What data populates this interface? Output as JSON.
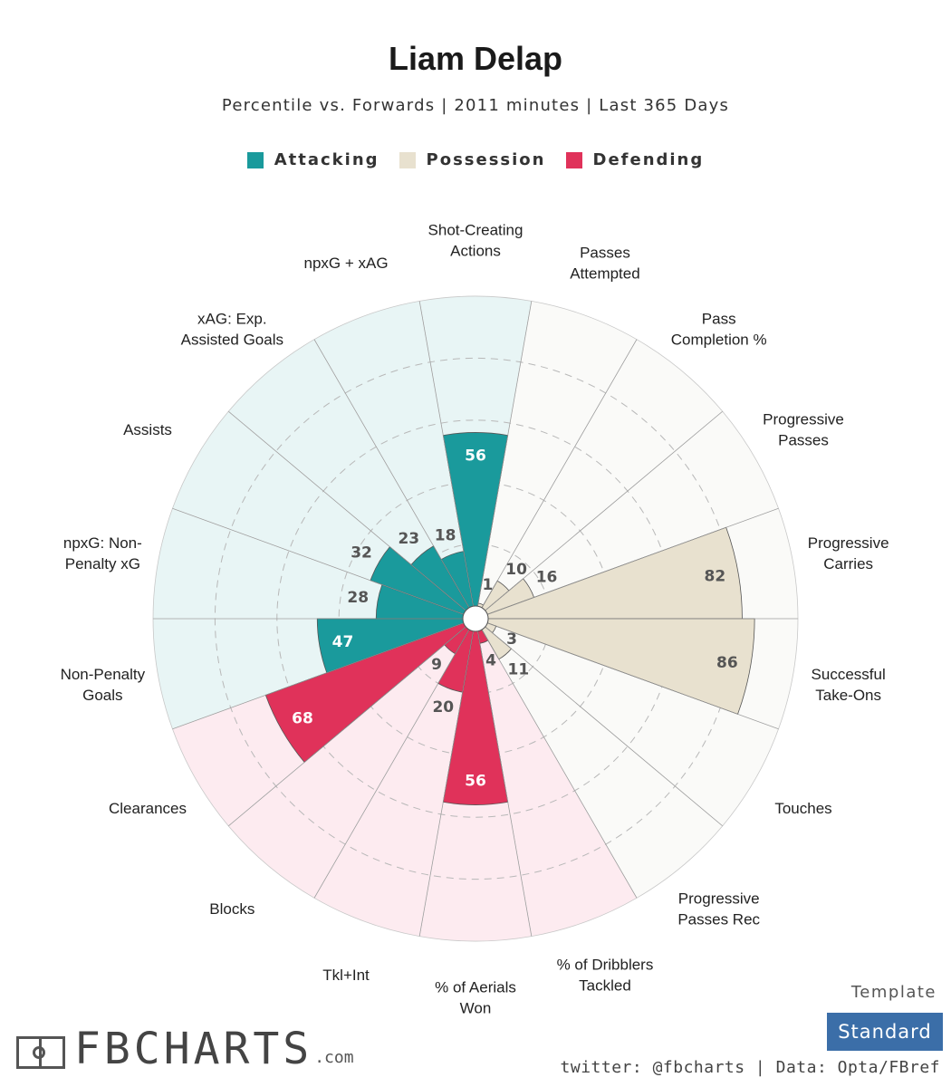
{
  "header": {
    "title": "Liam Delap",
    "subtitle": "Percentile vs. Forwards | 2011 minutes | Last 365 Days"
  },
  "legend": [
    {
      "label": "Attacking",
      "color": "#1a9a9c"
    },
    {
      "label": "Possession",
      "color": "#e8e1cf"
    },
    {
      "label": "Defending",
      "color": "#e0325a"
    }
  ],
  "chart_data": {
    "type": "polar-bar",
    "title": "Liam Delap",
    "subtitle": "Percentile vs. Forwards | 2011 minutes | Last 365 Days",
    "rlim": [
      0,
      100
    ],
    "grid": true,
    "legend_position": "top-center",
    "categories": [
      {
        "label": [
          "Shot-Creating",
          "Actions"
        ],
        "value": 56,
        "group": "Attacking"
      },
      {
        "label": [
          "Passes",
          "Attempted"
        ],
        "value": 1,
        "group": "Possession"
      },
      {
        "label": [
          "Pass",
          "Completion %"
        ],
        "value": 10,
        "group": "Possession"
      },
      {
        "label": [
          "Progressive",
          "Passes"
        ],
        "value": 16,
        "group": "Possession"
      },
      {
        "label": [
          "Progressive",
          "Carries"
        ],
        "value": 82,
        "group": "Possession"
      },
      {
        "label": [
          "Successful",
          "Take-Ons"
        ],
        "value": 86,
        "group": "Possession"
      },
      {
        "label": [
          "Touches"
        ],
        "value": 3,
        "group": "Possession"
      },
      {
        "label": [
          "Progressive",
          "Passes Rec"
        ],
        "value": 11,
        "group": "Possession"
      },
      {
        "label": [
          "% of Dribblers",
          "Tackled"
        ],
        "value": 4,
        "group": "Defending"
      },
      {
        "label": [
          "% of Aerials",
          "Won"
        ],
        "value": 56,
        "group": "Defending"
      },
      {
        "label": [
          "Tkl+Int"
        ],
        "value": 20,
        "group": "Defending"
      },
      {
        "label": [
          "Blocks"
        ],
        "value": 9,
        "group": "Defending"
      },
      {
        "label": [
          "Clearances"
        ],
        "value": 68,
        "group": "Defending"
      },
      {
        "label": [
          "Non-Penalty",
          "Goals"
        ],
        "value": 47,
        "group": "Attacking"
      },
      {
        "label": [
          "npxG: Non-",
          "Penalty xG"
        ],
        "value": 28,
        "group": "Attacking"
      },
      {
        "label": [
          "Assists"
        ],
        "value": 32,
        "group": "Attacking"
      },
      {
        "label": [
          "xAG: Exp.",
          "Assisted Goals"
        ],
        "value": 23,
        "group": "Attacking"
      },
      {
        "label": [
          "npxG + xAG"
        ],
        "value": 18,
        "group": "Attacking"
      }
    ],
    "colors": {
      "Attacking": {
        "bar": "#1a9a9c",
        "background": "#e8f5f5"
      },
      "Possession": {
        "bar": "#e8e1cf",
        "background": "#fafaf8"
      },
      "Defending": {
        "bar": "#e0325a",
        "background": "#fdebf0"
      }
    }
  },
  "footer": {
    "logo_text": "FBCHARTS",
    "logo_suffix": ".com",
    "template_label": "Template",
    "template_value": "Standard",
    "credit": "twitter: @fbcharts | Data: Opta/FBref"
  }
}
